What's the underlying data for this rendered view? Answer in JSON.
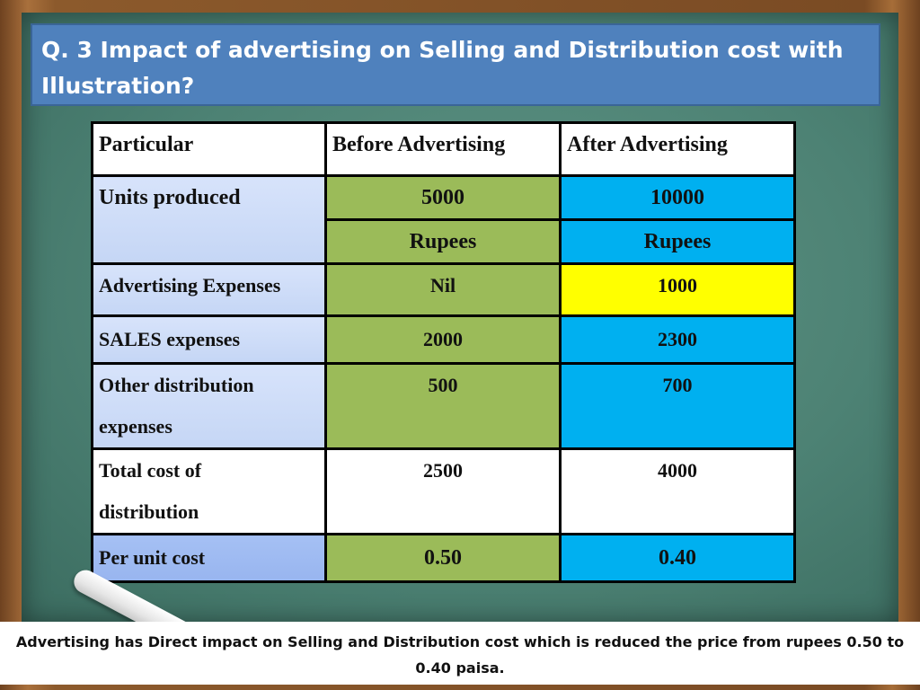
{
  "title": "Q. 3  Impact of advertising on Selling and Distribution cost with Illustration?",
  "table": {
    "headers": [
      "Particular",
      "Before Advertising",
      "After Advertising"
    ],
    "rows": [
      {
        "label": "Units produced",
        "before": "5000",
        "before_unit": "Rupees",
        "after": "10000",
        "after_unit": "Rupees"
      },
      {
        "label": "Advertising Expenses",
        "before": "Nil",
        "after": "1000"
      },
      {
        "label": "SALES expenses",
        "before": "2000",
        "after": "2300"
      },
      {
        "label_line1": "Other distribution",
        "label_line2": "expenses",
        "before": "500",
        "after": "700"
      },
      {
        "label_line1": "Total cost of",
        "label_line2": "distribution",
        "before": "2500",
        "after": "4000"
      },
      {
        "label": "Per unit cost",
        "before": "0.50",
        "after": "0.40"
      }
    ]
  },
  "footer": "Advertising has Direct impact on Selling and Distribution cost which is reduced the price from rupees 0.50 to 0.40 paisa.",
  "colors": {
    "title_bg": "#4f81bd",
    "before_col": "#9bbb59",
    "after_col": "#00b0f0",
    "highlight": "#ffff00",
    "board": "#4d8274"
  }
}
